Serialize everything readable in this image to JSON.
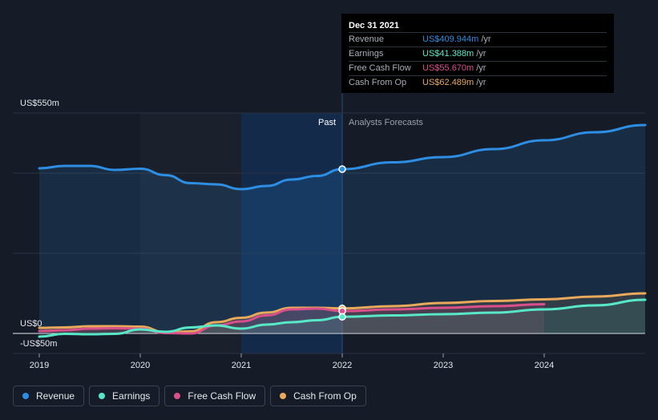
{
  "chart_data": {
    "type": "line",
    "y_axis": {
      "top_label": "US$550m",
      "zero_label": "US$0",
      "bottom_label": "-US$50m",
      "ylim": [
        -50,
        550
      ]
    },
    "x_ticks": [
      "2019",
      "2020",
      "2021",
      "2022",
      "2023",
      "2024"
    ],
    "sections": {
      "past": "Past",
      "forecast": "Analysts Forecasts"
    },
    "series": [
      {
        "name": "Revenue",
        "color": "#2d8ee3",
        "points": [
          [
            2019.0,
            412
          ],
          [
            2019.25,
            418
          ],
          [
            2019.5,
            418
          ],
          [
            2019.75,
            408
          ],
          [
            2020.0,
            411
          ],
          [
            2020.25,
            395
          ],
          [
            2020.5,
            375
          ],
          [
            2020.75,
            372
          ],
          [
            2021.0,
            360
          ],
          [
            2021.25,
            368
          ],
          [
            2021.5,
            384
          ],
          [
            2021.75,
            393
          ],
          [
            2022.0,
            410
          ],
          [
            2022.5,
            427
          ],
          [
            2023.0,
            440
          ],
          [
            2023.5,
            460
          ],
          [
            2024.0,
            482
          ],
          [
            2024.5,
            502
          ],
          [
            2025.0,
            520
          ]
        ]
      },
      {
        "name": "Earnings",
        "color": "#58e8c8",
        "points": [
          [
            2019.0,
            -8
          ],
          [
            2019.25,
            -1
          ],
          [
            2019.5,
            -2
          ],
          [
            2019.75,
            -1
          ],
          [
            2020.0,
            10
          ],
          [
            2020.25,
            4
          ],
          [
            2020.5,
            15
          ],
          [
            2020.75,
            20
          ],
          [
            2021.0,
            12
          ],
          [
            2021.25,
            22
          ],
          [
            2021.5,
            28
          ],
          [
            2021.75,
            33
          ],
          [
            2022.0,
            41.388
          ],
          [
            2022.5,
            45
          ],
          [
            2023.0,
            48
          ],
          [
            2023.5,
            52
          ],
          [
            2024.0,
            60
          ],
          [
            2024.5,
            70
          ],
          [
            2025.0,
            84
          ]
        ]
      },
      {
        "name": "Free Cash Flow",
        "color": "#d9508a",
        "points": [
          [
            2019.0,
            6
          ],
          [
            2019.25,
            8
          ],
          [
            2019.5,
            12
          ],
          [
            2019.75,
            13
          ],
          [
            2020.0,
            12
          ],
          [
            2020.25,
            1
          ],
          [
            2020.5,
            0
          ],
          [
            2020.75,
            20
          ],
          [
            2021.0,
            30
          ],
          [
            2021.25,
            45
          ],
          [
            2021.5,
            60
          ],
          [
            2021.75,
            62
          ],
          [
            2022.0,
            55.67
          ],
          [
            2022.5,
            60
          ],
          [
            2023.0,
            64
          ],
          [
            2023.5,
            68
          ],
          [
            2024.0,
            73
          ]
        ]
      },
      {
        "name": "Cash From Op",
        "color": "#e8a95b",
        "points": [
          [
            2019.0,
            14
          ],
          [
            2019.25,
            15
          ],
          [
            2019.5,
            18
          ],
          [
            2019.75,
            18
          ],
          [
            2020.0,
            17
          ],
          [
            2020.25,
            3
          ],
          [
            2020.5,
            5
          ],
          [
            2020.75,
            28
          ],
          [
            2021.0,
            39
          ],
          [
            2021.25,
            52
          ],
          [
            2021.5,
            64
          ],
          [
            2021.75,
            64
          ],
          [
            2022.0,
            62.489
          ],
          [
            2022.5,
            68
          ],
          [
            2023.0,
            76
          ],
          [
            2023.5,
            81
          ],
          [
            2024.0,
            85
          ],
          [
            2024.5,
            92
          ],
          [
            2025.0,
            100
          ]
        ]
      }
    ],
    "tooltip": {
      "date": "Dec 31 2021",
      "unit": "/yr",
      "rows": [
        {
          "label": "Revenue",
          "value": "US$409.944m",
          "color": "#2d8ee3"
        },
        {
          "label": "Earnings",
          "value": "US$41.388m",
          "color": "#58e8c8"
        },
        {
          "label": "Free Cash Flow",
          "value": "US$55.670m",
          "color": "#d9508a"
        },
        {
          "label": "Cash From Op",
          "value": "US$62.489m",
          "color": "#e8a95b"
        }
      ]
    },
    "legend": [
      {
        "label": "Revenue",
        "color": "#2d8ee3"
      },
      {
        "label": "Earnings",
        "color": "#58e8c8"
      },
      {
        "label": "Free Cash Flow",
        "color": "#d9508a"
      },
      {
        "label": "Cash From Op",
        "color": "#e8a95b"
      }
    ],
    "grid": true,
    "highlight_date": 2022.0
  }
}
